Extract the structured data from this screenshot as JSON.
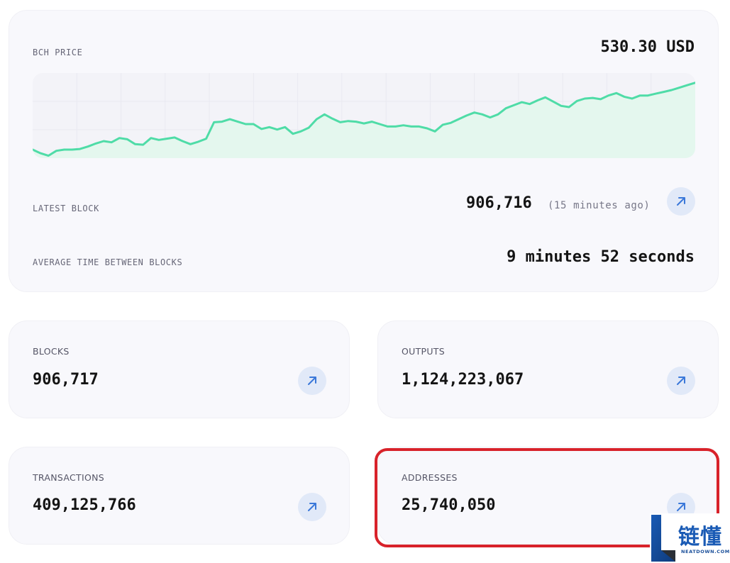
{
  "price_card": {
    "label": "BCH PRICE",
    "value": "530.30 USD"
  },
  "latest_block": {
    "label": "LATEST BLOCK",
    "value": "906,716",
    "ago": "(15 minutes ago)",
    "arrow_icon": "arrow-up-right-icon"
  },
  "avg_time": {
    "label": "AVERAGE TIME BETWEEN BLOCKS",
    "value": "9 minutes 52 seconds"
  },
  "stats": {
    "blocks": {
      "label": "BLOCKS",
      "value": "906,717"
    },
    "outputs": {
      "label": "OUTPUTS",
      "value": "1,124,223,067"
    },
    "transactions": {
      "label": "TRANSACTIONS",
      "value": "409,125,766"
    },
    "addresses": {
      "label": "ADDRESSES",
      "value": "25,740,050"
    }
  },
  "watermark": {
    "text": "链懂",
    "sub": "NEATDOWN.COM"
  },
  "colors": {
    "line": "#4fdca7",
    "fill": "#e6f8f0",
    "accent_arrow": "#3a78d9",
    "arrow_bg": "#e1e9f8",
    "highlight": "#d8222a"
  },
  "chart_data": {
    "type": "area",
    "values": [
      0.14,
      0.08,
      0.04,
      0.12,
      0.14,
      0.14,
      0.15,
      0.19,
      0.24,
      0.28,
      0.26,
      0.33,
      0.31,
      0.23,
      0.22,
      0.33,
      0.3,
      0.32,
      0.34,
      0.28,
      0.23,
      0.27,
      0.32,
      0.59,
      0.6,
      0.64,
      0.6,
      0.56,
      0.56,
      0.48,
      0.51,
      0.47,
      0.51,
      0.4,
      0.44,
      0.5,
      0.64,
      0.72,
      0.65,
      0.59,
      0.61,
      0.6,
      0.57,
      0.6,
      0.56,
      0.52,
      0.52,
      0.54,
      0.52,
      0.52,
      0.49,
      0.44,
      0.55,
      0.58,
      0.64,
      0.7,
      0.75,
      0.72,
      0.67,
      0.72,
      0.82,
      0.87,
      0.92,
      0.89,
      0.95,
      1.0,
      0.93,
      0.86,
      0.84,
      0.94,
      0.98,
      0.99,
      0.97,
      1.03,
      1.07,
      1.01,
      0.98,
      1.03,
      1.03,
      1.06,
      1.09,
      1.12,
      1.16,
      1.2,
      1.24
    ],
    "ylim": [
      0,
      1.4
    ],
    "grid": true
  }
}
